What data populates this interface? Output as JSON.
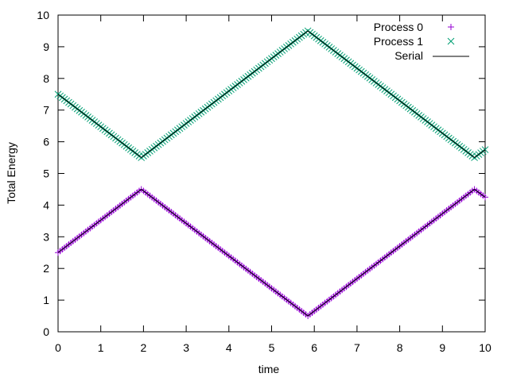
{
  "chart_data": {
    "type": "scatter",
    "xlabel": "time",
    "ylabel": "Total Energy",
    "xlim": [
      0,
      10
    ],
    "ylim": [
      0,
      10
    ],
    "x_ticks": [
      "0",
      "1",
      "2",
      "3",
      "4",
      "5",
      "6",
      "7",
      "8",
      "9",
      "10"
    ],
    "y_ticks": [
      "0",
      "1",
      "2",
      "3",
      "4",
      "5",
      "6",
      "7",
      "8",
      "9",
      "10"
    ],
    "grid": false,
    "legend_position": "top-right",
    "series": [
      {
        "name": "Process 0",
        "marker": "plus",
        "color": "#9400d3",
        "x": [
          0,
          1.95,
          5.85,
          9.75,
          10
        ],
        "y": [
          2.5,
          4.5,
          0.5,
          4.5,
          4.25
        ]
      },
      {
        "name": "Process 1",
        "marker": "cross",
        "color": "#009e73",
        "x": [
          0,
          1.95,
          5.85,
          9.75,
          10
        ],
        "y": [
          7.5,
          5.5,
          9.5,
          5.5,
          5.75
        ]
      },
      {
        "name": "Serial",
        "marker": "line",
        "color": "#000000",
        "segments": [
          {
            "x": [
              0,
              1.95,
              5.85,
              9.75,
              10
            ],
            "y": [
              2.5,
              4.5,
              0.5,
              4.5,
              4.25
            ]
          },
          {
            "x": [
              0,
              1.95,
              5.85,
              9.75,
              10
            ],
            "y": [
              7.5,
              5.5,
              9.5,
              5.5,
              5.75
            ]
          }
        ]
      }
    ]
  }
}
